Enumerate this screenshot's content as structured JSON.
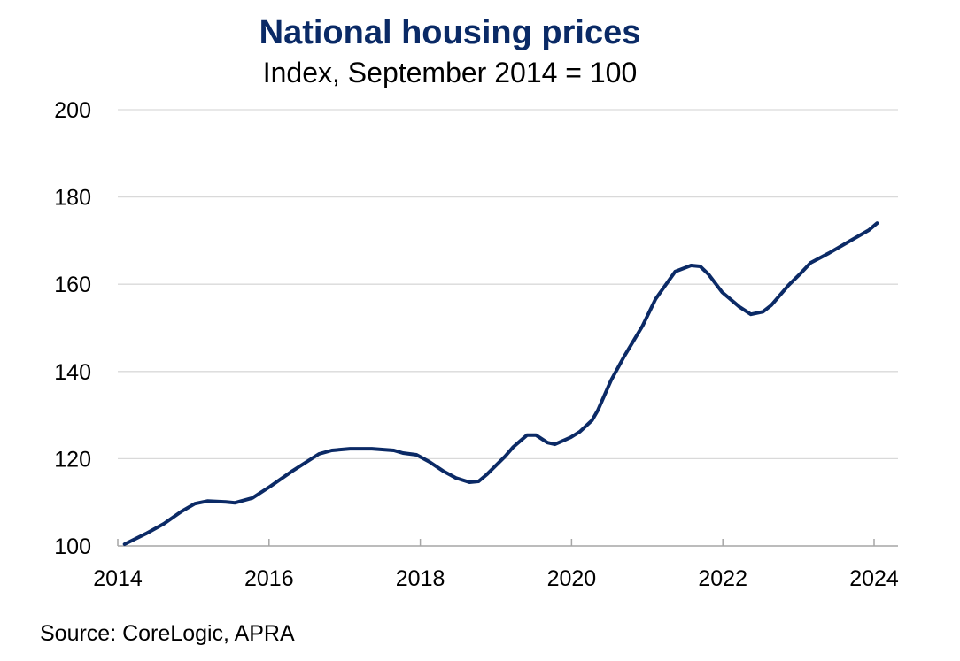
{
  "chart_data": {
    "type": "line",
    "title": "National housing prices",
    "subtitle": "Index, September 2014 = 100",
    "xlabel": "",
    "ylabel": "",
    "xlim": [
      2014,
      2024.3
    ],
    "ylim": [
      100,
      200
    ],
    "x_ticks": [
      2014,
      2016,
      2018,
      2020,
      2022,
      2024
    ],
    "y_ticks": [
      100,
      120,
      140,
      160,
      180,
      200
    ],
    "grid": "horizontal",
    "line_color": "#0b2a66",
    "series": [
      {
        "x": [
          2014.09,
          2014.37,
          2014.61,
          2014.84,
          2015.02,
          2015.19,
          2015.43,
          2015.55,
          2015.78,
          2016.01,
          2016.31,
          2016.66,
          2016.83,
          2017.07,
          2017.36,
          2017.65,
          2017.77,
          2017.95,
          2018.12,
          2018.3,
          2018.47,
          2018.65,
          2018.77,
          2018.88,
          2019.12,
          2019.23,
          2019.41,
          2019.53,
          2019.68,
          2019.78,
          2019.99,
          2020.11,
          2020.27,
          2020.35,
          2020.52,
          2020.7,
          2020.94,
          2021.11,
          2021.37,
          2021.58,
          2021.7,
          2021.81,
          2021.99,
          2022.22,
          2022.37,
          2022.53,
          2022.64,
          2022.87,
          2023.04,
          2023.16,
          2023.4,
          2023.69,
          2023.93,
          2024.04
        ],
        "y": [
          100.4,
          102.8,
          105.1,
          107.9,
          109.7,
          110.3,
          110.1,
          109.9,
          111.0,
          113.6,
          117.2,
          121.1,
          121.9,
          122.3,
          122.3,
          121.9,
          121.3,
          120.9,
          119.3,
          117.2,
          115.6,
          114.6,
          114.8,
          116.4,
          120.5,
          122.7,
          125.4,
          125.4,
          123.7,
          123.3,
          124.9,
          126.2,
          128.8,
          131.2,
          137.9,
          143.6,
          150.5,
          156.6,
          162.9,
          164.3,
          164.1,
          162.3,
          158.2,
          154.8,
          153.1,
          153.7,
          155.2,
          159.8,
          162.7,
          164.9,
          167.1,
          170.0,
          172.4,
          174.0
        ]
      }
    ]
  },
  "source": "Source: CoreLogic, APRA"
}
